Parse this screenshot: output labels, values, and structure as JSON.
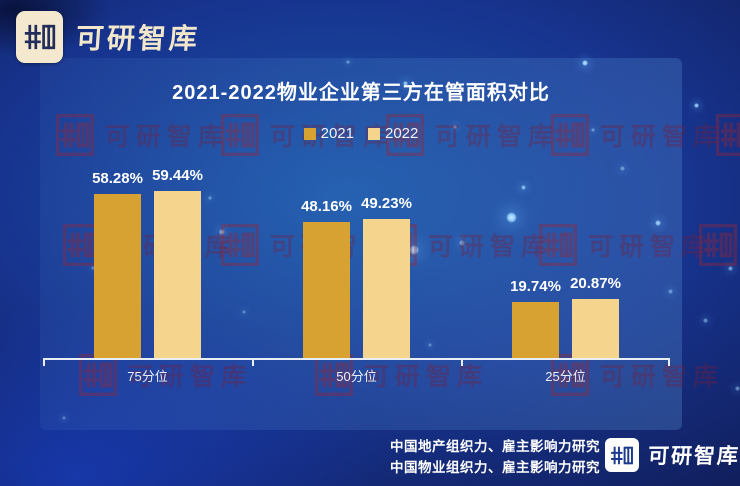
{
  "brand": {
    "logo_text": "可研智库"
  },
  "watermark": {
    "text": "可研智库",
    "seal_color": "#9c2433"
  },
  "background_color": "#17348f",
  "chart_data": {
    "type": "bar",
    "title": "2021-2022物业企业第三方在管面积对比",
    "categories": [
      "75分位",
      "50分位",
      "25分位"
    ],
    "series": [
      {
        "name": "2021",
        "color": "#D7A232",
        "values": [
          58.28,
          48.16,
          19.74
        ]
      },
      {
        "name": "2022",
        "color": "#F5D48E",
        "values": [
          59.44,
          49.23,
          20.87
        ]
      }
    ],
    "value_suffix": "%",
    "value_labels_shown": true,
    "ylim": [
      0,
      70
    ],
    "grid": false,
    "legend_position": "top",
    "axis_label_color": "#e9eff9",
    "title_color": "#ffffff"
  },
  "footer": {
    "line1": "中国地产组织力、雇主影响力研究",
    "line2": "中国物业组织力、雇主影响力研究",
    "logo_text": "可研智库"
  }
}
